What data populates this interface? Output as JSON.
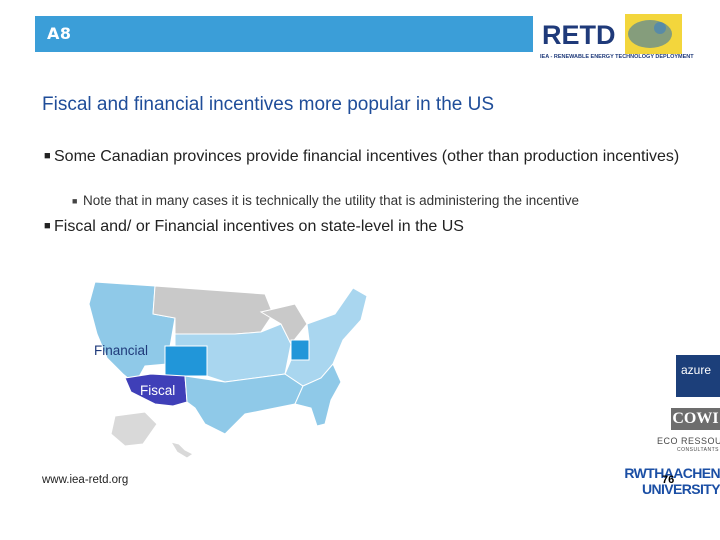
{
  "header": {
    "slide_label": "A8"
  },
  "logo": {
    "text": "RETD",
    "tagline": "IEA - RENEWABLE ENERGY TECHNOLOGY DEPLOYMENT"
  },
  "title": "Fiscal and financial incentives more popular in the US",
  "bullets": [
    {
      "text": "Some Canadian provinces provide financial incentives (other than production incentives)"
    },
    {
      "text": "Fiscal and/ or Financial incentives on state-level in the US"
    }
  ],
  "sub_bullets": [
    {
      "text": "Note that in many cases it is technically the utility that is administering the incentive"
    }
  ],
  "map": {
    "financial_label": "Financial",
    "fiscal_label": "Fiscal"
  },
  "colors": {
    "header": "#3b9ed8",
    "title": "#1f4d99",
    "financial": "#8fc9e8",
    "financial_strong": "#2196d9",
    "fiscal": "#3f3fb8",
    "other": "#c9c9c9"
  },
  "footer": {
    "url": "www.iea-retd.org",
    "page": "76"
  },
  "sponsors": {
    "azure": "azure",
    "cowi": "COWI",
    "eco": "ECO RESSOURCES",
    "eco_small": "CONSULTANTS",
    "rwth_1": "RWTHAACHEN",
    "rwth_2": "UNIVERSITY"
  }
}
